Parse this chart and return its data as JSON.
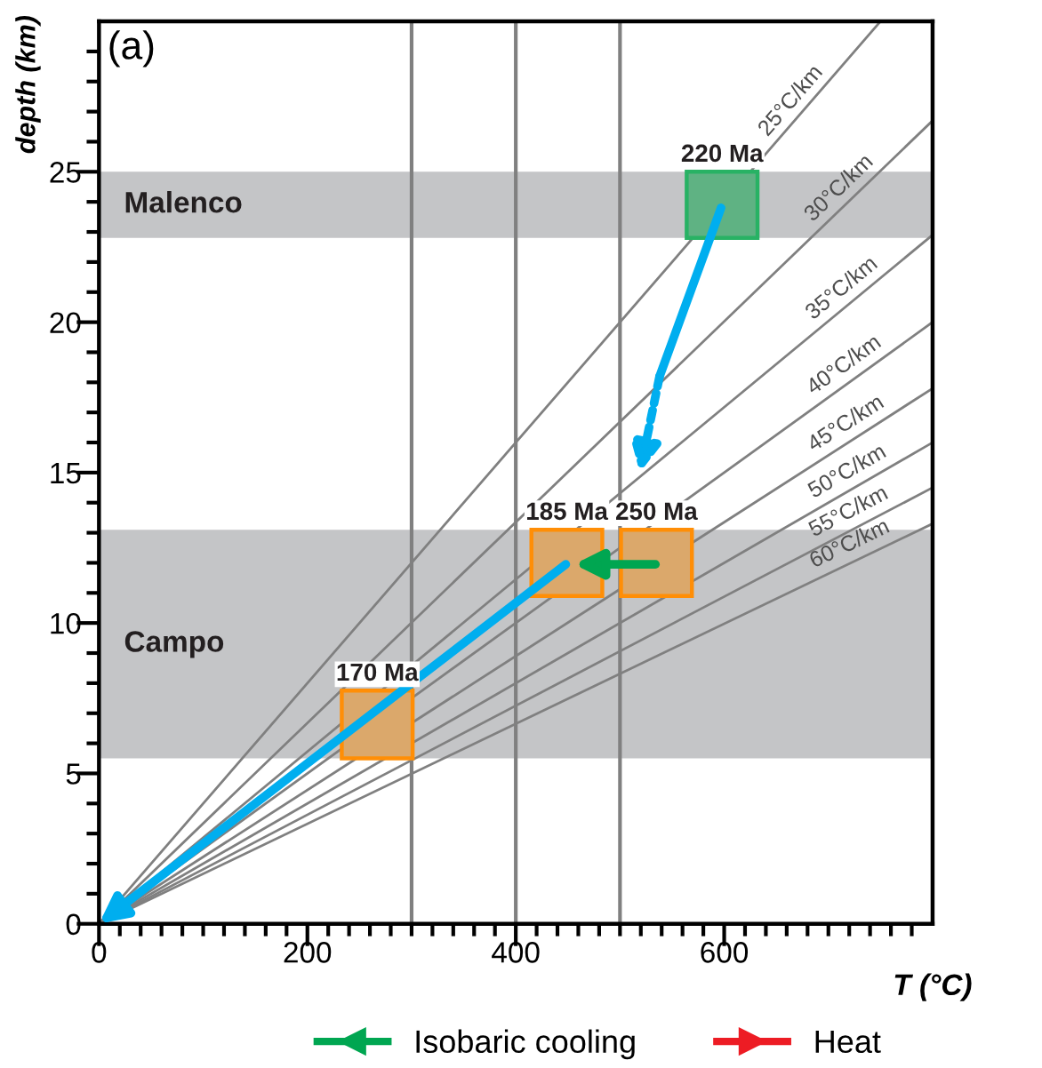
{
  "chart_data": {
    "type": "line",
    "xlabel": "T (°C)",
    "ylabel": "depth (km)",
    "xlim": [
      0,
      800
    ],
    "ylim": [
      0,
      30
    ],
    "xticks": [
      0,
      {
        "value": 20,
        "label": null
      },
      {
        "value": 40,
        "label": null
      },
      {
        "value": 60,
        "label": null
      },
      {
        "value": 80,
        "label": null
      },
      {
        "value": 100,
        "label": null
      },
      {
        "value": 120,
        "label": null
      },
      {
        "value": 140,
        "label": null
      },
      {
        "value": 160,
        "label": null
      },
      {
        "value": 180,
        "label": null
      },
      200,
      {
        "value": 220,
        "label": null
      },
      {
        "value": 240,
        "label": null
      },
      {
        "value": 260,
        "label": null
      },
      {
        "value": 280,
        "label": null
      },
      {
        "value": 300,
        "label": null
      },
      {
        "value": 320,
        "label": null
      },
      {
        "value": 340,
        "label": null
      },
      {
        "value": 360,
        "label": null
      },
      {
        "value": 380,
        "label": null
      },
      400,
      {
        "value": 420,
        "label": null
      },
      {
        "value": 440,
        "label": null
      },
      {
        "value": 460,
        "label": null
      },
      {
        "value": 480,
        "label": null
      },
      {
        "value": 500,
        "label": null
      },
      {
        "value": 520,
        "label": null
      },
      {
        "value": 540,
        "label": null
      },
      {
        "value": 560,
        "label": null
      },
      {
        "value": 580,
        "label": null
      },
      600,
      {
        "value": 620,
        "label": null
      },
      {
        "value": 640,
        "label": null
      },
      {
        "value": 660,
        "label": null
      },
      {
        "value": 680,
        "label": null
      },
      {
        "value": 700,
        "label": null
      },
      {
        "value": 720,
        "label": null
      },
      {
        "value": 740,
        "label": null
      },
      {
        "value": 760,
        "label": null
      },
      {
        "value": 780,
        "label": null
      }
    ],
    "yticks": [
      0,
      {
        "value": 1,
        "label": null
      },
      {
        "value": 2,
        "label": null
      },
      {
        "value": 3,
        "label": null
      },
      {
        "value": 4,
        "label": null
      },
      5,
      {
        "value": 6,
        "label": null
      },
      {
        "value": 7,
        "label": null
      },
      {
        "value": 8,
        "label": null
      },
      {
        "value": 9,
        "label": null
      },
      10,
      {
        "value": 11,
        "label": null
      },
      {
        "value": 12,
        "label": null
      },
      {
        "value": 13,
        "label": null
      },
      {
        "value": 14,
        "label": null
      },
      15,
      {
        "value": 16,
        "label": null
      },
      {
        "value": 17,
        "label": null
      },
      {
        "value": 18,
        "label": null
      },
      {
        "value": 19,
        "label": null
      },
      20,
      {
        "value": 21,
        "label": null
      },
      {
        "value": 22,
        "label": null
      },
      {
        "value": 23,
        "label": null
      },
      {
        "value": 24,
        "label": null
      },
      25,
      {
        "value": 26,
        "label": null
      },
      {
        "value": 27,
        "label": null
      },
      {
        "value": 28,
        "label": null
      },
      {
        "value": 29,
        "label": null
      }
    ],
    "grid": false,
    "legend": "bottom",
    "bands": [
      {
        "axis": "y",
        "from": 22.8,
        "to": 25,
        "label": "Malenco",
        "color": "#c4c5c7"
      },
      {
        "axis": "y",
        "from": 5.5,
        "to": 13.1,
        "label": "Campo",
        "color": "#c4c5c7"
      }
    ],
    "ref_lines": [
      {
        "axis": "x",
        "value": 300,
        "color": "#808080"
      },
      {
        "axis": "x",
        "value": 400,
        "color": "#808080"
      },
      {
        "axis": "x",
        "value": 500,
        "color": "#808080"
      }
    ],
    "series": [
      {
        "name": "25°C/km",
        "color": "#808080",
        "x": [
          0,
          750
        ],
        "values": [
          0,
          30
        ]
      },
      {
        "name": "30°C/km",
        "color": "#808080",
        "x": [
          0,
          800
        ],
        "values": [
          0,
          26.7
        ]
      },
      {
        "name": "35°C/km",
        "color": "#808080",
        "x": [
          0,
          800
        ],
        "values": [
          0,
          22.9
        ]
      },
      {
        "name": "40°C/km",
        "color": "#808080",
        "x": [
          0,
          800
        ],
        "values": [
          0,
          20
        ]
      },
      {
        "name": "45°C/km",
        "color": "#808080",
        "x": [
          0,
          800
        ],
        "values": [
          0,
          17.8
        ]
      },
      {
        "name": "50°C/km",
        "color": "#808080",
        "x": [
          0,
          800
        ],
        "values": [
          0,
          16
        ]
      },
      {
        "name": "55°C/km",
        "color": "#808080",
        "x": [
          0,
          800
        ],
        "values": [
          0,
          14.5
        ]
      },
      {
        "name": "60°C/km",
        "color": "#808080",
        "x": [
          0,
          800
        ],
        "values": [
          0,
          13.3
        ]
      },
      {
        "type": "bar",
        "color": "#5fb283",
        "x": [
          598
        ],
        "base": [
          22.8
        ],
        "values": [
          2.2
        ]
      },
      {
        "type": "bar",
        "color": "#dba86b",
        "x": [
          267,
          449,
          535
        ],
        "base": [
          5.5,
          10.9,
          10.9
        ],
        "values": [
          2.25,
          2.2,
          2.2
        ]
      },
      {
        "name": "Isobaric cooling",
        "color": "#00a651",
        "line_style": "solid"
      },
      {
        "name": "Heat",
        "color": "#ed1c24",
        "line_style": "solid"
      }
    ],
    "annotations": [
      "(a)",
      {
        "text": "220 Ma",
        "x": 598,
        "y": 25
      },
      {
        "text": "185 Ma",
        "x": 449,
        "y": 13.1
      },
      {
        "text": "250 Ma",
        "x": 535,
        "y": 13.1
      },
      {
        "text": "170 Ma",
        "x": 267,
        "y": 7.75
      }
    ]
  }
}
